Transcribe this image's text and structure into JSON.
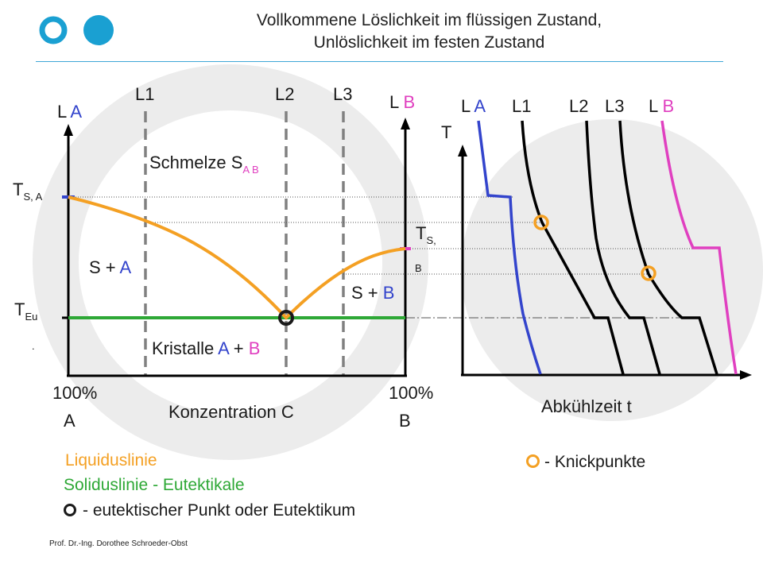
{
  "title": {
    "line1": "Vollkommene Löslichkeit im flüssigen Zustand,",
    "line2": "Unlöslichkeit im festen Zustand"
  },
  "colors": {
    "accent": "#1aa0d2",
    "liquidus": "#f4a023",
    "solidus": "#2ea836",
    "component_a": "#3344cc",
    "component_b": "#e040c0",
    "background_circle": "#ececec"
  },
  "phase_diagram": {
    "left_axis": {
      "prefix": "L ",
      "letter": "A"
    },
    "right_axis": {
      "prefix": "L ",
      "letter": "B"
    },
    "ts_a": {
      "main": "T",
      "sub": "S, A"
    },
    "ts_b": {
      "main": "T",
      "sub": "S,",
      "sub2": "B"
    },
    "t_eu": {
      "main": "T",
      "sub": "Eu",
      "mark": "."
    },
    "alloy_lines": [
      "L1",
      "L2",
      "L3"
    ],
    "region_melt": {
      "text": "Schmelze S",
      "sub": "A B"
    },
    "region_sa": {
      "prefix": "S + ",
      "letter": "A"
    },
    "region_sb": {
      "prefix": "S + ",
      "letter": "B"
    },
    "region_crystals": {
      "prefix": "Kristalle ",
      "a": "A",
      "plus": " + ",
      "b": "B"
    },
    "x_left": {
      "pct": "100%",
      "letter": "A"
    },
    "x_right": {
      "pct": "100%",
      "letter": "B"
    },
    "x_label": "Konzentration C"
  },
  "cooling_diagram": {
    "y_label": "T",
    "curve_labels": [
      {
        "prefix": "L ",
        "letter": "A",
        "color": "component_a"
      },
      {
        "prefix": "",
        "letter": "L1",
        "color": "black"
      },
      {
        "prefix": "",
        "letter": "L2",
        "color": "black"
      },
      {
        "prefix": "",
        "letter": "L3",
        "color": "black"
      },
      {
        "prefix": "L ",
        "letter": "B",
        "color": "component_b"
      }
    ],
    "x_label": "Abkühlzeit t"
  },
  "legend": {
    "liquidus": "Liquiduslinie",
    "solidus": "Soliduslinie - Eutektikale",
    "eutectic": "- eutektischer Punkt oder Eutektikum",
    "knick": "- Knickpunkte"
  },
  "footer": "Prof. Dr.-Ing. Dorothee Schroeder-Obst"
}
